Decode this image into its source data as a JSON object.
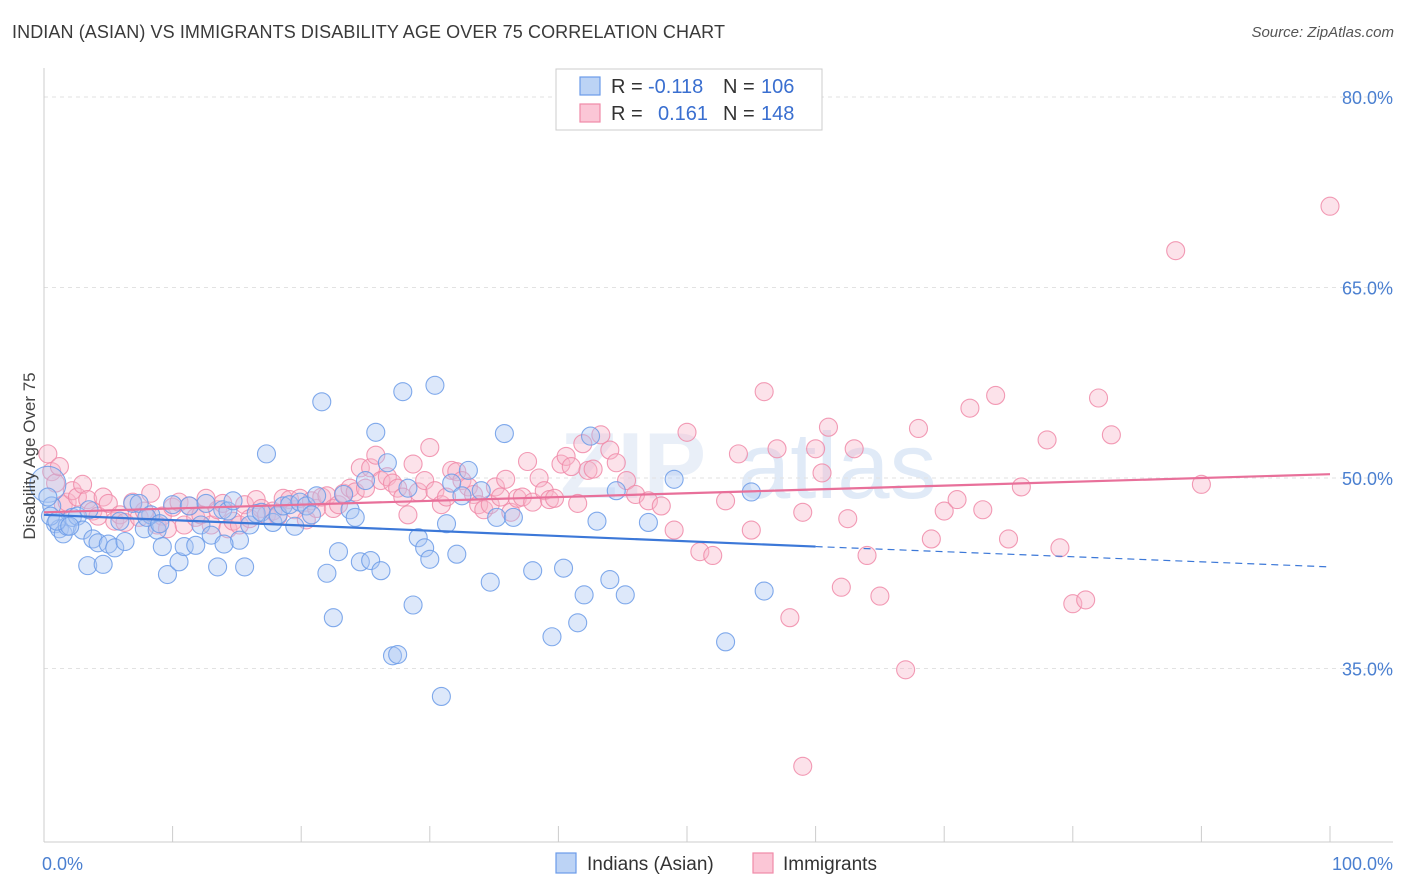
{
  "title": "INDIAN (ASIAN) VS IMMIGRANTS DISABILITY AGE OVER 75 CORRELATION CHART",
  "source": "Source: ZipAtlas.com",
  "watermark": "ZIPatlas",
  "chart_data": {
    "type": "scatter",
    "xlabel": "",
    "ylabel": "Disability Age Over 75",
    "xlim": [
      0,
      100
    ],
    "ylim": [
      20,
      83
    ],
    "x_tick_labels": [
      {
        "value": 0,
        "label": "0.0%"
      },
      {
        "value": 100,
        "label": "100.0%"
      }
    ],
    "y_tick_labels": [
      {
        "value": 35,
        "label": "35.0%"
      },
      {
        "value": 50,
        "label": "50.0%"
      },
      {
        "value": 65,
        "label": "65.0%"
      },
      {
        "value": 80,
        "label": "80.0%"
      }
    ],
    "grid": "horizontal dashed",
    "legend_position": "top-center",
    "stats": [
      {
        "r_label": "R = ",
        "r_value": "-0.118",
        "n_label": "N = ",
        "n_value": "106"
      },
      {
        "r_label": "R = ",
        "r_value": "0.161",
        "n_label": "N = ",
        "n_value": "148"
      }
    ],
    "series": [
      {
        "name": "Indians (Asian)",
        "color": "#6b9be8",
        "trend": {
          "x0": 0,
          "y0": 47.1,
          "x1": 60,
          "y1": 44.6,
          "x_dash_end": 100,
          "y_dash_end": 43.0
        },
        "points": [
          [
            0.3,
            49.5
          ],
          [
            0.6,
            47.8
          ],
          [
            0.9,
            46.4
          ],
          [
            1.2,
            46.0
          ],
          [
            1.5,
            45.6
          ],
          [
            1.8,
            46.2
          ],
          [
            2.2,
            46.9
          ],
          [
            2.6,
            47.0
          ],
          [
            3.0,
            45.9
          ],
          [
            3.4,
            43.1
          ],
          [
            3.8,
            45.2
          ],
          [
            4.2,
            44.9
          ],
          [
            4.6,
            43.2
          ],
          [
            5.0,
            44.8
          ],
          [
            5.5,
            44.5
          ],
          [
            5.9,
            46.6
          ],
          [
            6.3,
            45.0
          ],
          [
            6.9,
            48.0
          ],
          [
            7.4,
            48.0
          ],
          [
            7.8,
            46.0
          ],
          [
            8.3,
            47.1
          ],
          [
            8.8,
            45.9
          ],
          [
            9.2,
            44.6
          ],
          [
            9.6,
            42.4
          ],
          [
            10.0,
            47.9
          ],
          [
            10.5,
            43.4
          ],
          [
            10.9,
            44.6
          ],
          [
            11.3,
            47.8
          ],
          [
            11.8,
            44.7
          ],
          [
            12.2,
            46.3
          ],
          [
            12.6,
            48.0
          ],
          [
            13.0,
            45.5
          ],
          [
            13.5,
            43.0
          ],
          [
            13.9,
            47.5
          ],
          [
            14.3,
            47.4
          ],
          [
            14.7,
            48.2
          ],
          [
            15.2,
            45.1
          ],
          [
            15.6,
            43.0
          ],
          [
            16.0,
            46.3
          ],
          [
            16.5,
            47.2
          ],
          [
            16.9,
            47.3
          ],
          [
            17.3,
            51.9
          ],
          [
            17.8,
            46.5
          ],
          [
            18.2,
            47.1
          ],
          [
            18.6,
            47.8
          ],
          [
            19.1,
            47.9
          ],
          [
            19.5,
            46.2
          ],
          [
            19.9,
            48.1
          ],
          [
            20.4,
            47.8
          ],
          [
            20.8,
            47.1
          ],
          [
            21.2,
            48.6
          ],
          [
            21.6,
            56.0
          ],
          [
            22.0,
            42.5
          ],
          [
            22.5,
            39.0
          ],
          [
            22.9,
            44.2
          ],
          [
            23.3,
            48.7
          ],
          [
            23.8,
            47.5
          ],
          [
            24.2,
            46.9
          ],
          [
            24.6,
            43.4
          ],
          [
            25.0,
            49.8
          ],
          [
            25.4,
            43.5
          ],
          [
            25.8,
            53.6
          ],
          [
            26.2,
            42.7
          ],
          [
            26.7,
            51.2
          ],
          [
            27.1,
            36.0
          ],
          [
            27.5,
            36.1
          ],
          [
            27.9,
            56.8
          ],
          [
            28.3,
            49.2
          ],
          [
            28.7,
            40.0
          ],
          [
            29.1,
            45.3
          ],
          [
            29.6,
            44.5
          ],
          [
            30.0,
            43.6
          ],
          [
            30.4,
            57.3
          ],
          [
            30.9,
            32.8
          ],
          [
            31.3,
            46.4
          ],
          [
            31.7,
            49.6
          ],
          [
            32.1,
            44.0
          ],
          [
            32.5,
            48.6
          ],
          [
            33.0,
            50.6
          ],
          [
            34.0,
            49.0
          ],
          [
            34.7,
            41.8
          ],
          [
            35.2,
            46.9
          ],
          [
            35.8,
            53.5
          ],
          [
            36.5,
            46.9
          ],
          [
            38.0,
            42.7
          ],
          [
            39.5,
            37.5
          ],
          [
            40.4,
            42.9
          ],
          [
            41.5,
            38.6
          ],
          [
            42.0,
            40.8
          ],
          [
            42.5,
            53.3
          ],
          [
            43.0,
            46.6
          ],
          [
            44.0,
            42.0
          ],
          [
            44.5,
            49.0
          ],
          [
            45.2,
            40.8
          ],
          [
            47.0,
            46.5
          ],
          [
            49.0,
            49.9
          ],
          [
            53.0,
            37.1
          ],
          [
            55.0,
            48.9
          ],
          [
            56.0,
            41.1
          ],
          [
            0.3,
            48.5
          ],
          [
            0.5,
            47.0
          ],
          [
            1.0,
            46.6
          ],
          [
            2.0,
            46.2
          ],
          [
            3.5,
            47.5
          ],
          [
            8.0,
            46.9
          ],
          [
            9.0,
            46.4
          ],
          [
            14.0,
            44.8
          ]
        ]
      },
      {
        "name": "Immigrants",
        "color": "#f08aa8",
        "trend": {
          "x0": 0,
          "y0": 47.3,
          "x1": 100,
          "y1": 50.3
        },
        "points": [
          [
            0.3,
            51.9
          ],
          [
            0.6,
            50.5
          ],
          [
            0.9,
            49.6
          ],
          [
            1.2,
            50.9
          ],
          [
            1.5,
            47.9
          ],
          [
            1.8,
            48.1
          ],
          [
            2.2,
            49.0
          ],
          [
            2.6,
            48.5
          ],
          [
            3.0,
            49.5
          ],
          [
            3.4,
            48.3
          ],
          [
            3.8,
            47.4
          ],
          [
            4.2,
            47.0
          ],
          [
            4.6,
            48.5
          ],
          [
            5.0,
            48.0
          ],
          [
            5.5,
            46.6
          ],
          [
            5.9,
            47.1
          ],
          [
            6.3,
            46.5
          ],
          [
            6.9,
            48.1
          ],
          [
            7.4,
            46.9
          ],
          [
            7.8,
            47.4
          ],
          [
            8.3,
            48.8
          ],
          [
            8.8,
            46.3
          ],
          [
            9.2,
            47.0
          ],
          [
            9.6,
            46.0
          ],
          [
            10.0,
            47.7
          ],
          [
            10.5,
            48.1
          ],
          [
            10.9,
            46.3
          ],
          [
            11.3,
            47.8
          ],
          [
            11.8,
            46.9
          ],
          [
            12.2,
            47.1
          ],
          [
            12.6,
            48.4
          ],
          [
            13.0,
            46.3
          ],
          [
            13.5,
            47.5
          ],
          [
            13.9,
            48.0
          ],
          [
            14.3,
            46.0
          ],
          [
            14.7,
            46.6
          ],
          [
            15.2,
            46.3
          ],
          [
            15.6,
            47.9
          ],
          [
            16.0,
            46.8
          ],
          [
            16.5,
            48.3
          ],
          [
            16.9,
            47.6
          ],
          [
            17.3,
            47.1
          ],
          [
            17.8,
            47.4
          ],
          [
            18.2,
            47.0
          ],
          [
            18.6,
            48.4
          ],
          [
            19.1,
            48.3
          ],
          [
            19.5,
            47.5
          ],
          [
            19.9,
            48.4
          ],
          [
            20.4,
            46.7
          ],
          [
            20.8,
            48.2
          ],
          [
            21.2,
            47.6
          ],
          [
            21.6,
            48.5
          ],
          [
            22.0,
            48.6
          ],
          [
            22.5,
            47.6
          ],
          [
            22.9,
            47.9
          ],
          [
            23.3,
            48.8
          ],
          [
            23.8,
            49.2
          ],
          [
            24.2,
            48.9
          ],
          [
            24.6,
            50.8
          ],
          [
            25.0,
            49.2
          ],
          [
            25.4,
            50.8
          ],
          [
            25.8,
            51.8
          ],
          [
            26.2,
            49.8
          ],
          [
            26.7,
            50.1
          ],
          [
            27.1,
            49.6
          ],
          [
            27.5,
            49.2
          ],
          [
            27.9,
            48.5
          ],
          [
            28.3,
            47.1
          ],
          [
            28.7,
            51.1
          ],
          [
            29.1,
            48.9
          ],
          [
            29.6,
            49.8
          ],
          [
            30.0,
            52.4
          ],
          [
            30.4,
            49.0
          ],
          [
            30.9,
            47.9
          ],
          [
            31.3,
            48.5
          ],
          [
            31.7,
            50.6
          ],
          [
            32.1,
            50.5
          ],
          [
            32.5,
            49.8
          ],
          [
            33.0,
            49.3
          ],
          [
            33.4,
            48.7
          ],
          [
            33.8,
            47.9
          ],
          [
            34.2,
            47.5
          ],
          [
            34.7,
            47.9
          ],
          [
            35.1,
            49.3
          ],
          [
            35.5,
            48.5
          ],
          [
            35.9,
            49.9
          ],
          [
            36.3,
            47.3
          ],
          [
            36.8,
            48.4
          ],
          [
            37.2,
            48.5
          ],
          [
            37.6,
            51.3
          ],
          [
            38.0,
            48.1
          ],
          [
            38.5,
            50.0
          ],
          [
            38.9,
            49.0
          ],
          [
            39.3,
            48.3
          ],
          [
            39.7,
            48.4
          ],
          [
            40.2,
            51.1
          ],
          [
            40.6,
            51.7
          ],
          [
            41.0,
            50.9
          ],
          [
            41.5,
            48.0
          ],
          [
            41.9,
            52.7
          ],
          [
            42.3,
            50.6
          ],
          [
            42.7,
            50.7
          ],
          [
            43.3,
            53.4
          ],
          [
            44.0,
            52.2
          ],
          [
            44.5,
            51.2
          ],
          [
            45.3,
            49.8
          ],
          [
            46.0,
            48.7
          ],
          [
            47.0,
            48.2
          ],
          [
            48.0,
            47.8
          ],
          [
            49.0,
            45.9
          ],
          [
            50.0,
            53.6
          ],
          [
            51.0,
            44.2
          ],
          [
            52.0,
            43.9
          ],
          [
            53.0,
            48.2
          ],
          [
            54.0,
            51.9
          ],
          [
            55.0,
            45.9
          ],
          [
            56.0,
            56.8
          ],
          [
            57.0,
            52.3
          ],
          [
            58.0,
            39.0
          ],
          [
            59.0,
            47.3
          ],
          [
            60.0,
            52.3
          ],
          [
            61.0,
            54.0
          ],
          [
            62.0,
            41.4
          ],
          [
            63.0,
            52.3
          ],
          [
            64.0,
            43.9
          ],
          [
            65.0,
            40.7
          ],
          [
            67.0,
            34.9
          ],
          [
            68.0,
            53.9
          ],
          [
            69.0,
            45.2
          ],
          [
            70.0,
            47.4
          ],
          [
            71.0,
            48.3
          ],
          [
            72.0,
            55.5
          ],
          [
            73.0,
            47.5
          ],
          [
            74.0,
            56.5
          ],
          [
            75.0,
            45.2
          ],
          [
            76.0,
            49.3
          ],
          [
            78.0,
            53.0
          ],
          [
            79.0,
            44.5
          ],
          [
            80.0,
            40.1
          ],
          [
            81.0,
            40.4
          ],
          [
            82.0,
            56.3
          ],
          [
            83.0,
            53.4
          ],
          [
            88.0,
            67.9
          ],
          [
            90.0,
            49.5
          ],
          [
            100.0,
            71.4
          ],
          [
            59.0,
            27.3
          ],
          [
            60.5,
            50.4
          ],
          [
            62.5,
            46.8
          ]
        ]
      }
    ]
  }
}
